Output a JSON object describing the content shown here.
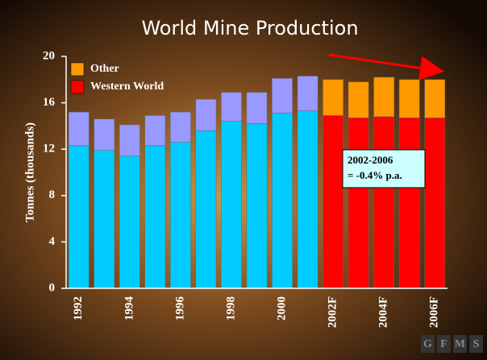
{
  "chart_data": {
    "type": "stacked-bar",
    "title": "World Mine Production",
    "ylabel": "Tonnes (thousands)",
    "categories": [
      "1992",
      null,
      "1994",
      null,
      "1996",
      null,
      "1998",
      null,
      "2000",
      null,
      "2002F",
      null,
      "2004F",
      null,
      "2006F"
    ],
    "series": [
      {
        "name": "Western World",
        "color": "#ff0000",
        "colors": [
          "#00ccff",
          "#00ccff",
          "#00ccff",
          "#00ccff",
          "#00ccff",
          "#00ccff",
          "#00ccff",
          "#00ccff",
          "#00ccff",
          "#00ccff",
          "#ff0000",
          "#ff0000",
          "#ff0000",
          "#ff0000",
          "#ff0000"
        ],
        "values": [
          12.3,
          11.9,
          11.4,
          12.3,
          12.6,
          13.6,
          14.4,
          14.2,
          15.1,
          15.3,
          14.9,
          14.7,
          14.8,
          14.7,
          14.7
        ]
      },
      {
        "name": "Other",
        "color": "#ff9900",
        "colors": [
          "#9999ff",
          "#9999ff",
          "#9999ff",
          "#9999ff",
          "#9999ff",
          "#9999ff",
          "#9999ff",
          "#9999ff",
          "#9999ff",
          "#9999ff",
          "#ff9900",
          "#ff9900",
          "#ff9900",
          "#ff9900",
          "#ff9900"
        ],
        "values": [
          2.9,
          2.7,
          2.7,
          2.6,
          2.6,
          2.7,
          2.5,
          2.7,
          3.0,
          3.0,
          3.1,
          3.1,
          3.4,
          3.3,
          3.3
        ]
      }
    ],
    "ylim": [
      0,
      20
    ],
    "yticks": [
      0,
      4,
      8,
      12,
      16,
      20
    ],
    "grid": false,
    "annotation": [
      "2002-2006",
      "= -0.4% p.a."
    ],
    "logo": [
      "G",
      "F",
      "M",
      "S"
    ]
  }
}
